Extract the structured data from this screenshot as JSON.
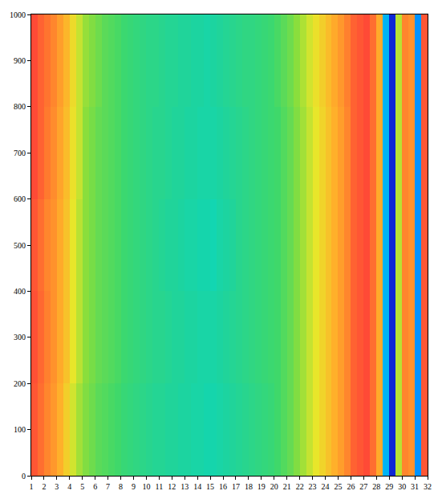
{
  "chart_data": {
    "type": "heatmap",
    "x": [
      1.25,
      1.75,
      2.25,
      2.75,
      3.25,
      3.75,
      4.25,
      4.75,
      5.25,
      5.75,
      6.25,
      6.75,
      7.25,
      7.75,
      8.25,
      8.75,
      9.25,
      9.75,
      10.25,
      10.75,
      11.25,
      11.75,
      12.25,
      12.75,
      13.25,
      13.75,
      14.25,
      14.75,
      15.25,
      15.75,
      16.25,
      16.75,
      17.25,
      17.75,
      18.25,
      18.75,
      19.25,
      19.75,
      20.25,
      20.75,
      21.25,
      21.75,
      22.25,
      22.75,
      23.25,
      23.75,
      24.25,
      24.75,
      25.25,
      25.75,
      26.25,
      26.75,
      27.25,
      27.75,
      28.25,
      28.75,
      29.25,
      29.75,
      30.25,
      30.75,
      31.25,
      31.75
    ],
    "y": [
      100,
      300,
      500,
      700,
      900
    ],
    "z": [
      [
        0.9,
        0.86,
        0.82,
        0.79,
        0.75,
        0.7,
        0.64,
        0.6,
        0.57,
        0.55,
        0.53,
        0.52,
        0.51,
        0.5,
        0.48,
        0.47,
        0.46,
        0.45,
        0.44,
        0.43,
        0.43,
        0.42,
        0.42,
        0.41,
        0.41,
        0.4,
        0.4,
        0.39,
        0.39,
        0.4,
        0.41,
        0.42,
        0.43,
        0.44,
        0.45,
        0.46,
        0.47,
        0.48,
        0.5,
        0.52,
        0.54,
        0.57,
        0.6,
        0.63,
        0.66,
        0.69,
        0.72,
        0.75,
        0.78,
        0.82,
        0.88,
        0.9,
        0.92,
        0.86,
        0.76,
        0.25,
        0.05,
        0.62,
        0.82,
        0.8,
        0.2,
        0.9
      ],
      [
        0.91,
        0.87,
        0.83,
        0.8,
        0.76,
        0.72,
        0.66,
        0.62,
        0.58,
        0.56,
        0.54,
        0.53,
        0.52,
        0.51,
        0.49,
        0.48,
        0.47,
        0.46,
        0.45,
        0.44,
        0.44,
        0.43,
        0.42,
        0.42,
        0.41,
        0.41,
        0.4,
        0.4,
        0.4,
        0.41,
        0.42,
        0.43,
        0.44,
        0.45,
        0.46,
        0.47,
        0.48,
        0.49,
        0.5,
        0.52,
        0.54,
        0.57,
        0.6,
        0.63,
        0.66,
        0.69,
        0.72,
        0.75,
        0.78,
        0.82,
        0.88,
        0.9,
        0.92,
        0.86,
        0.76,
        0.25,
        0.05,
        0.62,
        0.82,
        0.8,
        0.2,
        0.9
      ],
      [
        0.9,
        0.86,
        0.82,
        0.8,
        0.76,
        0.72,
        0.66,
        0.62,
        0.58,
        0.56,
        0.54,
        0.53,
        0.52,
        0.51,
        0.49,
        0.48,
        0.47,
        0.46,
        0.45,
        0.44,
        0.43,
        0.42,
        0.42,
        0.41,
        0.4,
        0.4,
        0.39,
        0.39,
        0.38,
        0.4,
        0.41,
        0.42,
        0.44,
        0.45,
        0.46,
        0.47,
        0.48,
        0.49,
        0.5,
        0.52,
        0.54,
        0.57,
        0.6,
        0.63,
        0.66,
        0.69,
        0.72,
        0.75,
        0.78,
        0.82,
        0.88,
        0.9,
        0.92,
        0.86,
        0.76,
        0.25,
        0.05,
        0.62,
        0.82,
        0.8,
        0.2,
        0.9
      ],
      [
        0.92,
        0.88,
        0.84,
        0.81,
        0.77,
        0.73,
        0.67,
        0.63,
        0.58,
        0.56,
        0.54,
        0.53,
        0.52,
        0.51,
        0.49,
        0.48,
        0.47,
        0.46,
        0.45,
        0.44,
        0.44,
        0.43,
        0.42,
        0.42,
        0.41,
        0.41,
        0.4,
        0.4,
        0.4,
        0.41,
        0.42,
        0.43,
        0.44,
        0.45,
        0.46,
        0.47,
        0.48,
        0.49,
        0.5,
        0.52,
        0.54,
        0.57,
        0.6,
        0.63,
        0.66,
        0.69,
        0.72,
        0.75,
        0.78,
        0.82,
        0.88,
        0.9,
        0.92,
        0.86,
        0.76,
        0.25,
        0.05,
        0.62,
        0.82,
        0.8,
        0.2,
        0.9
      ],
      [
        0.92,
        0.88,
        0.85,
        0.82,
        0.78,
        0.74,
        0.68,
        0.63,
        0.59,
        0.57,
        0.55,
        0.53,
        0.52,
        0.51,
        0.49,
        0.48,
        0.47,
        0.46,
        0.45,
        0.45,
        0.44,
        0.43,
        0.43,
        0.42,
        0.42,
        0.41,
        0.41,
        0.4,
        0.41,
        0.42,
        0.43,
        0.44,
        0.45,
        0.46,
        0.46,
        0.47,
        0.48,
        0.49,
        0.51,
        0.53,
        0.55,
        0.58,
        0.61,
        0.64,
        0.67,
        0.7,
        0.73,
        0.76,
        0.79,
        0.83,
        0.88,
        0.9,
        0.92,
        0.86,
        0.76,
        0.25,
        0.05,
        0.62,
        0.82,
        0.8,
        0.2,
        0.9
      ]
    ],
    "zlim": [
      0,
      1
    ],
    "xlim": [
      1,
      32
    ],
    "ylim": [
      0,
      1000
    ],
    "xticks": [
      1,
      2,
      3,
      4,
      5,
      6,
      7,
      8,
      9,
      10,
      11,
      12,
      13,
      14,
      15,
      16,
      17,
      18,
      19,
      20,
      21,
      22,
      23,
      24,
      25,
      26,
      27,
      28,
      29,
      30,
      31,
      32
    ],
    "yticks": [
      0,
      100,
      200,
      300,
      400,
      500,
      600,
      700,
      800,
      900,
      1000
    ],
    "grid": true
  }
}
